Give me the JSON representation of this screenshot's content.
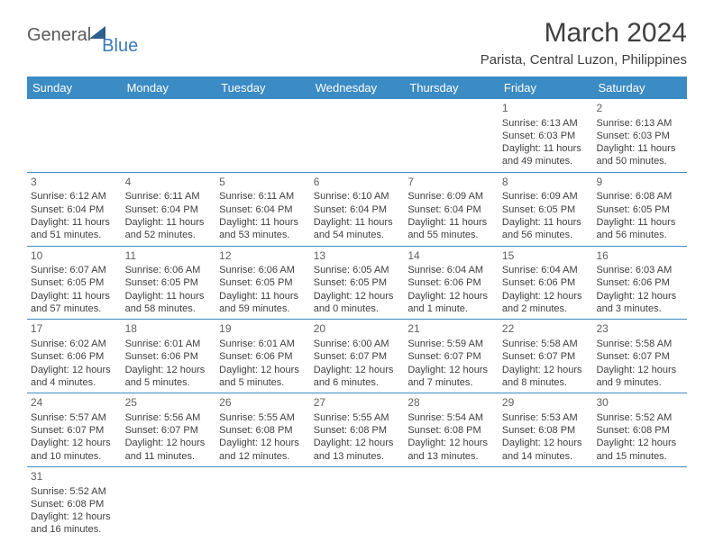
{
  "logo": {
    "main": "General",
    "sub": "Blue"
  },
  "title": "March 2024",
  "location": "Parista, Central Luzon, Philippines",
  "colors": {
    "header_bg": "#3b8bc4",
    "header_text": "#ffffff",
    "border": "#3b8bc4",
    "text": "#404040",
    "logo_gray": "#5a5a5a",
    "logo_blue": "#3a7ab8"
  },
  "day_headers": [
    "Sunday",
    "Monday",
    "Tuesday",
    "Wednesday",
    "Thursday",
    "Friday",
    "Saturday"
  ],
  "weeks": [
    [
      null,
      null,
      null,
      null,
      null,
      {
        "n": "1",
        "sr": "Sunrise: 6:13 AM",
        "ss": "Sunset: 6:03 PM",
        "d1": "Daylight: 11 hours",
        "d2": "and 49 minutes."
      },
      {
        "n": "2",
        "sr": "Sunrise: 6:13 AM",
        "ss": "Sunset: 6:03 PM",
        "d1": "Daylight: 11 hours",
        "d2": "and 50 minutes."
      }
    ],
    [
      {
        "n": "3",
        "sr": "Sunrise: 6:12 AM",
        "ss": "Sunset: 6:04 PM",
        "d1": "Daylight: 11 hours",
        "d2": "and 51 minutes."
      },
      {
        "n": "4",
        "sr": "Sunrise: 6:11 AM",
        "ss": "Sunset: 6:04 PM",
        "d1": "Daylight: 11 hours",
        "d2": "and 52 minutes."
      },
      {
        "n": "5",
        "sr": "Sunrise: 6:11 AM",
        "ss": "Sunset: 6:04 PM",
        "d1": "Daylight: 11 hours",
        "d2": "and 53 minutes."
      },
      {
        "n": "6",
        "sr": "Sunrise: 6:10 AM",
        "ss": "Sunset: 6:04 PM",
        "d1": "Daylight: 11 hours",
        "d2": "and 54 minutes."
      },
      {
        "n": "7",
        "sr": "Sunrise: 6:09 AM",
        "ss": "Sunset: 6:04 PM",
        "d1": "Daylight: 11 hours",
        "d2": "and 55 minutes."
      },
      {
        "n": "8",
        "sr": "Sunrise: 6:09 AM",
        "ss": "Sunset: 6:05 PM",
        "d1": "Daylight: 11 hours",
        "d2": "and 56 minutes."
      },
      {
        "n": "9",
        "sr": "Sunrise: 6:08 AM",
        "ss": "Sunset: 6:05 PM",
        "d1": "Daylight: 11 hours",
        "d2": "and 56 minutes."
      }
    ],
    [
      {
        "n": "10",
        "sr": "Sunrise: 6:07 AM",
        "ss": "Sunset: 6:05 PM",
        "d1": "Daylight: 11 hours",
        "d2": "and 57 minutes."
      },
      {
        "n": "11",
        "sr": "Sunrise: 6:06 AM",
        "ss": "Sunset: 6:05 PM",
        "d1": "Daylight: 11 hours",
        "d2": "and 58 minutes."
      },
      {
        "n": "12",
        "sr": "Sunrise: 6:06 AM",
        "ss": "Sunset: 6:05 PM",
        "d1": "Daylight: 11 hours",
        "d2": "and 59 minutes."
      },
      {
        "n": "13",
        "sr": "Sunrise: 6:05 AM",
        "ss": "Sunset: 6:05 PM",
        "d1": "Daylight: 12 hours",
        "d2": "and 0 minutes."
      },
      {
        "n": "14",
        "sr": "Sunrise: 6:04 AM",
        "ss": "Sunset: 6:06 PM",
        "d1": "Daylight: 12 hours",
        "d2": "and 1 minute."
      },
      {
        "n": "15",
        "sr": "Sunrise: 6:04 AM",
        "ss": "Sunset: 6:06 PM",
        "d1": "Daylight: 12 hours",
        "d2": "and 2 minutes."
      },
      {
        "n": "16",
        "sr": "Sunrise: 6:03 AM",
        "ss": "Sunset: 6:06 PM",
        "d1": "Daylight: 12 hours",
        "d2": "and 3 minutes."
      }
    ],
    [
      {
        "n": "17",
        "sr": "Sunrise: 6:02 AM",
        "ss": "Sunset: 6:06 PM",
        "d1": "Daylight: 12 hours",
        "d2": "and 4 minutes."
      },
      {
        "n": "18",
        "sr": "Sunrise: 6:01 AM",
        "ss": "Sunset: 6:06 PM",
        "d1": "Daylight: 12 hours",
        "d2": "and 5 minutes."
      },
      {
        "n": "19",
        "sr": "Sunrise: 6:01 AM",
        "ss": "Sunset: 6:06 PM",
        "d1": "Daylight: 12 hours",
        "d2": "and 5 minutes."
      },
      {
        "n": "20",
        "sr": "Sunrise: 6:00 AM",
        "ss": "Sunset: 6:07 PM",
        "d1": "Daylight: 12 hours",
        "d2": "and 6 minutes."
      },
      {
        "n": "21",
        "sr": "Sunrise: 5:59 AM",
        "ss": "Sunset: 6:07 PM",
        "d1": "Daylight: 12 hours",
        "d2": "and 7 minutes."
      },
      {
        "n": "22",
        "sr": "Sunrise: 5:58 AM",
        "ss": "Sunset: 6:07 PM",
        "d1": "Daylight: 12 hours",
        "d2": "and 8 minutes."
      },
      {
        "n": "23",
        "sr": "Sunrise: 5:58 AM",
        "ss": "Sunset: 6:07 PM",
        "d1": "Daylight: 12 hours",
        "d2": "and 9 minutes."
      }
    ],
    [
      {
        "n": "24",
        "sr": "Sunrise: 5:57 AM",
        "ss": "Sunset: 6:07 PM",
        "d1": "Daylight: 12 hours",
        "d2": "and 10 minutes."
      },
      {
        "n": "25",
        "sr": "Sunrise: 5:56 AM",
        "ss": "Sunset: 6:07 PM",
        "d1": "Daylight: 12 hours",
        "d2": "and 11 minutes."
      },
      {
        "n": "26",
        "sr": "Sunrise: 5:55 AM",
        "ss": "Sunset: 6:08 PM",
        "d1": "Daylight: 12 hours",
        "d2": "and 12 minutes."
      },
      {
        "n": "27",
        "sr": "Sunrise: 5:55 AM",
        "ss": "Sunset: 6:08 PM",
        "d1": "Daylight: 12 hours",
        "d2": "and 13 minutes."
      },
      {
        "n": "28",
        "sr": "Sunrise: 5:54 AM",
        "ss": "Sunset: 6:08 PM",
        "d1": "Daylight: 12 hours",
        "d2": "and 13 minutes."
      },
      {
        "n": "29",
        "sr": "Sunrise: 5:53 AM",
        "ss": "Sunset: 6:08 PM",
        "d1": "Daylight: 12 hours",
        "d2": "and 14 minutes."
      },
      {
        "n": "30",
        "sr": "Sunrise: 5:52 AM",
        "ss": "Sunset: 6:08 PM",
        "d1": "Daylight: 12 hours",
        "d2": "and 15 minutes."
      }
    ],
    [
      {
        "n": "31",
        "sr": "Sunrise: 5:52 AM",
        "ss": "Sunset: 6:08 PM",
        "d1": "Daylight: 12 hours",
        "d2": "and 16 minutes."
      },
      null,
      null,
      null,
      null,
      null,
      null
    ]
  ]
}
